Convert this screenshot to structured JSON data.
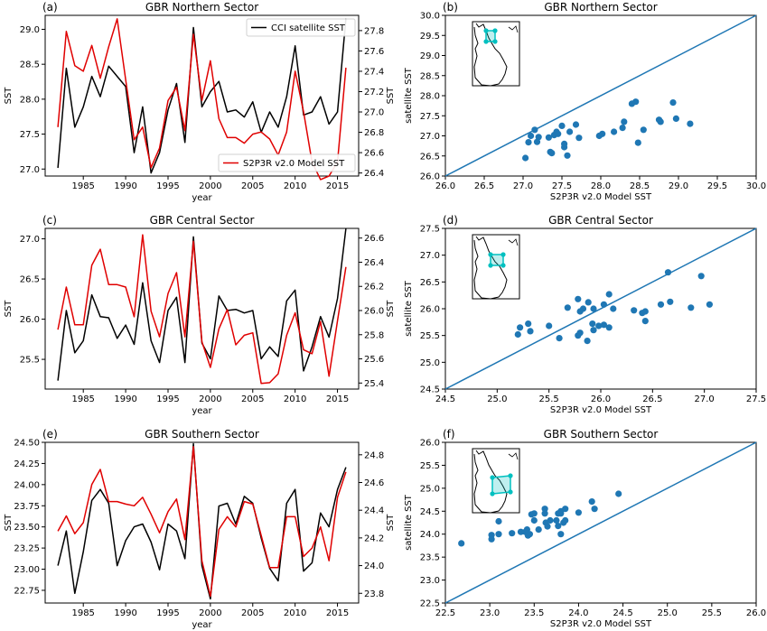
{
  "colors": {
    "satellite": "#000000",
    "model": "#e00000",
    "scatter": "#1f77b4",
    "line11": "#1f77b4",
    "inset_cyan": "#00c0c0",
    "axis": "#000000"
  },
  "legend": {
    "satellite": "CCI satellite SST",
    "model": "S2P3R v2.0 Model SST"
  },
  "chart_data": [
    {
      "panel": "(a)",
      "type": "line",
      "title": "GBR Northern Sector",
      "xlabel": "year",
      "ylabel_left": "SST",
      "ylabel_right": "SST",
      "xlim": [
        1980.5,
        2017.5
      ],
      "ylim_left": [
        26.9,
        29.2
      ],
      "ylim_right": [
        26.37,
        27.95
      ],
      "xticks": [
        1985,
        1990,
        1995,
        2000,
        2005,
        2010,
        2015
      ],
      "yticks_left": [
        "27.0",
        "27.5",
        "28.0",
        "28.5",
        "29.0"
      ],
      "yticks_right": [
        "26.4",
        "26.6",
        "26.8",
        "27.0",
        "27.2",
        "27.4",
        "27.6",
        "27.8"
      ],
      "x": [
        1982,
        1983,
        1984,
        1985,
        1986,
        1987,
        1988,
        1989,
        1990,
        1991,
        1992,
        1993,
        1994,
        1995,
        1996,
        1997,
        1998,
        1999,
        2000,
        2001,
        2002,
        2003,
        2004,
        2005,
        2006,
        2007,
        2008,
        2009,
        2010,
        2011,
        2012,
        2013,
        2014,
        2015,
        2016
      ],
      "series": [
        {
          "name": "CCI satellite SST",
          "axis": "right",
          "values": [
            26.45,
            27.43,
            26.85,
            27.05,
            27.35,
            27.15,
            27.45,
            27.35,
            27.25,
            26.6,
            27.05,
            26.4,
            26.6,
            27.02,
            27.28,
            26.7,
            27.83,
            27.05,
            27.2,
            27.3,
            27.0,
            27.02,
            26.95,
            27.1,
            26.8,
            27.0,
            26.85,
            27.15,
            27.65,
            26.97,
            27.0,
            27.15,
            26.88,
            27.0,
            27.92
          ]
        },
        {
          "name": "S2P3R v2.0 Model SST",
          "axis": "left",
          "values": [
            27.6,
            28.97,
            28.48,
            28.4,
            28.77,
            28.3,
            28.75,
            29.15,
            28.28,
            27.42,
            27.6,
            27.02,
            27.3,
            27.98,
            28.17,
            27.55,
            28.93,
            27.98,
            28.55,
            27.72,
            27.45,
            27.45,
            27.37,
            27.5,
            27.53,
            27.43,
            27.2,
            27.53,
            28.4,
            27.82,
            27.1,
            26.85,
            26.9,
            27.1,
            28.45
          ]
        }
      ]
    },
    {
      "panel": "(b)",
      "type": "scatter",
      "title": "GBR Northern Sector",
      "xlabel": "S2P3R v2.0 Model SST",
      "ylabel": "satellite SST",
      "xlim": [
        26.0,
        30.0
      ],
      "ylim": [
        26.0,
        30.0
      ],
      "xticks": [
        "26.0",
        "26.5",
        "27.0",
        "27.5",
        "28.0",
        "28.5",
        "29.0",
        "29.5",
        "30.0"
      ],
      "yticks": [
        "26.0",
        "26.5",
        "27.0",
        "27.5",
        "28.0",
        "28.5",
        "29.0",
        "29.5",
        "30.0"
      ],
      "points": [
        [
          27.03,
          26.45
        ],
        [
          27.07,
          26.84
        ],
        [
          27.1,
          27.0
        ],
        [
          27.15,
          27.15
        ],
        [
          27.18,
          26.85
        ],
        [
          27.2,
          26.97
        ],
        [
          27.33,
          26.96
        ],
        [
          27.35,
          26.6
        ],
        [
          27.37,
          26.57
        ],
        [
          27.4,
          27.02
        ],
        [
          27.43,
          27.1
        ],
        [
          27.45,
          27.05
        ],
        [
          27.5,
          27.25
        ],
        [
          27.53,
          26.8
        ],
        [
          27.53,
          26.72
        ],
        [
          27.57,
          26.51
        ],
        [
          27.6,
          27.1
        ],
        [
          27.68,
          27.28
        ],
        [
          27.72,
          26.95
        ],
        [
          27.98,
          27.0
        ],
        [
          28.02,
          27.05
        ],
        [
          28.17,
          27.1
        ],
        [
          28.28,
          27.2
        ],
        [
          28.3,
          27.35
        ],
        [
          28.4,
          27.8
        ],
        [
          28.45,
          27.85
        ],
        [
          28.48,
          26.83
        ],
        [
          28.55,
          27.15
        ],
        [
          28.75,
          27.4
        ],
        [
          28.77,
          27.35
        ],
        [
          28.93,
          27.83
        ],
        [
          28.97,
          27.43
        ],
        [
          29.15,
          27.3
        ]
      ],
      "inset": "map"
    },
    {
      "panel": "(c)",
      "type": "line",
      "title": "GBR Central Sector",
      "xlabel": "year",
      "ylabel_left": "SST",
      "ylabel_right": "SST",
      "xlim": [
        1980.5,
        2017.5
      ],
      "ylim_left": [
        25.13,
        27.13
      ],
      "ylim_right": [
        25.35,
        26.68
      ],
      "xticks": [
        1985,
        1990,
        1995,
        2000,
        2005,
        2010,
        2015
      ],
      "yticks_left": [
        "25.5",
        "26.0",
        "26.5",
        "27.0"
      ],
      "yticks_right": [
        "25.4",
        "25.6",
        "25.8",
        "26.0",
        "26.2",
        "26.4",
        "26.6"
      ],
      "x": [
        1982,
        1983,
        1984,
        1985,
        1986,
        1987,
        1988,
        1989,
        1990,
        1991,
        1992,
        1993,
        1994,
        1995,
        1996,
        1997,
        1998,
        1999,
        2000,
        2001,
        2002,
        2003,
        2004,
        2005,
        2006,
        2007,
        2008,
        2009,
        2010,
        2011,
        2012,
        2013,
        2014,
        2015,
        2016
      ],
      "series": [
        {
          "name": "CCI satellite SST",
          "axis": "right",
          "values": [
            25.42,
            26.0,
            25.65,
            25.75,
            26.13,
            25.95,
            25.94,
            25.77,
            25.88,
            25.72,
            26.23,
            25.75,
            25.57,
            26.0,
            26.11,
            25.57,
            26.61,
            25.73,
            25.6,
            26.12,
            26.0,
            26.01,
            25.98,
            26.0,
            25.6,
            25.7,
            25.62,
            26.08,
            26.17,
            25.5,
            25.7,
            25.95,
            25.78,
            26.1,
            26.68
          ]
        },
        {
          "name": "S2P3R v2.0 Model SST",
          "axis": "left",
          "values": [
            25.87,
            26.4,
            25.93,
            25.93,
            26.67,
            26.87,
            26.43,
            26.43,
            26.4,
            26.03,
            27.05,
            26.1,
            25.78,
            26.32,
            26.58,
            25.78,
            26.97,
            25.72,
            25.4,
            25.88,
            26.12,
            25.68,
            25.8,
            25.83,
            25.2,
            25.21,
            25.32,
            25.8,
            26.08,
            25.62,
            25.57,
            25.97,
            25.29,
            25.98,
            26.65
          ]
        }
      ]
    },
    {
      "panel": "(d)",
      "type": "scatter",
      "title": "GBR Central Sector",
      "xlabel": "S2P3R v2.0 Model SST",
      "ylabel": "satellite SST",
      "xlim": [
        24.5,
        27.5
      ],
      "ylim": [
        24.5,
        27.5
      ],
      "xticks": [
        "24.5",
        "25.0",
        "25.5",
        "26.0",
        "26.5",
        "27.0",
        "27.5"
      ],
      "yticks": [
        "24.5",
        "25.0",
        "25.5",
        "26.0",
        "26.5",
        "27.0",
        "27.5"
      ],
      "points": [
        [
          25.2,
          25.52
        ],
        [
          25.22,
          25.65
        ],
        [
          25.3,
          25.72
        ],
        [
          25.32,
          25.58
        ],
        [
          25.5,
          25.68
        ],
        [
          25.6,
          25.45
        ],
        [
          25.68,
          26.02
        ],
        [
          25.78,
          26.18
        ],
        [
          25.78,
          25.5
        ],
        [
          25.8,
          25.55
        ],
        [
          25.8,
          25.95
        ],
        [
          25.83,
          26.0
        ],
        [
          25.87,
          25.4
        ],
        [
          25.88,
          26.12
        ],
        [
          25.92,
          25.72
        ],
        [
          25.93,
          26.0
        ],
        [
          25.93,
          25.6
        ],
        [
          25.98,
          25.68
        ],
        [
          26.03,
          26.08
        ],
        [
          26.03,
          25.7
        ],
        [
          26.08,
          26.27
        ],
        [
          26.08,
          25.65
        ],
        [
          26.12,
          26.0
        ],
        [
          26.32,
          25.97
        ],
        [
          26.4,
          25.92
        ],
        [
          26.43,
          25.95
        ],
        [
          26.43,
          25.77
        ],
        [
          26.58,
          26.08
        ],
        [
          26.65,
          26.68
        ],
        [
          26.67,
          26.13
        ],
        [
          26.87,
          26.02
        ],
        [
          26.97,
          26.61
        ],
        [
          27.05,
          26.08
        ]
      ],
      "inset": "map"
    },
    {
      "panel": "(e)",
      "type": "line",
      "title": "GBR Southern Sector",
      "xlabel": "year",
      "ylabel_left": "SST",
      "ylabel_right": "SST",
      "xlim": [
        1980.5,
        2017.5
      ],
      "ylim_left": [
        22.6,
        24.5
      ],
      "ylim_right": [
        23.73,
        24.89
      ],
      "xticks": [
        1985,
        1990,
        1995,
        2000,
        2005,
        2010,
        2015
      ],
      "yticks_left": [
        "22.75",
        "23.00",
        "23.25",
        "23.50",
        "23.75",
        "24.00",
        "24.25",
        "24.50"
      ],
      "yticks_right": [
        "23.8",
        "24.0",
        "24.2",
        "24.4",
        "24.6",
        "24.8"
      ],
      "x": [
        1982,
        1983,
        1984,
        1985,
        1986,
        1987,
        1988,
        1989,
        1990,
        1991,
        1992,
        1993,
        1994,
        1995,
        1996,
        1997,
        1998,
        1999,
        2000,
        2001,
        2002,
        2003,
        2004,
        2005,
        2006,
        2007,
        2008,
        2009,
        2010,
        2011,
        2012,
        2013,
        2014,
        2015,
        2016
      ],
      "series": [
        {
          "name": "CCI satellite SST",
          "axis": "right",
          "values": [
            24.0,
            24.25,
            23.8,
            24.1,
            24.47,
            24.55,
            24.45,
            24.0,
            24.18,
            24.28,
            24.3,
            24.17,
            23.97,
            24.3,
            24.25,
            24.05,
            24.88,
            24.0,
            23.76,
            24.43,
            24.45,
            24.3,
            24.5,
            24.45,
            24.2,
            23.98,
            23.89,
            24.45,
            24.55,
            23.96,
            24.02,
            24.38,
            24.28,
            24.55,
            24.71
          ]
        },
        {
          "name": "S2P3R v2.0 Model SST",
          "axis": "left",
          "values": [
            23.45,
            23.63,
            23.42,
            23.55,
            24.0,
            24.18,
            23.8,
            23.8,
            23.77,
            23.75,
            23.85,
            23.65,
            23.43,
            23.68,
            23.83,
            23.35,
            24.45,
            23.1,
            22.68,
            23.47,
            23.62,
            23.5,
            23.8,
            23.77,
            23.4,
            23.02,
            23.02,
            23.62,
            23.62,
            23.15,
            23.25,
            23.5,
            23.1,
            23.85,
            24.15
          ]
        }
      ]
    },
    {
      "panel": "(f)",
      "type": "scatter",
      "title": "GBR Southern Sector",
      "xlabel": "S2P3R v2.0 Model SST",
      "ylabel": "satellite SST",
      "xlim": [
        22.5,
        26.0
      ],
      "ylim": [
        22.5,
        26.0
      ],
      "xticks": [
        "22.5",
        "23.0",
        "23.5",
        "24.0",
        "24.5",
        "25.0",
        "25.5",
        "26.0"
      ],
      "yticks": [
        "22.5",
        "23.0",
        "23.5",
        "24.0",
        "24.5",
        "25.0",
        "25.5",
        "26.0"
      ],
      "points": [
        [
          22.68,
          23.8
        ],
        [
          23.02,
          23.98
        ],
        [
          23.02,
          23.89
        ],
        [
          23.1,
          24.28
        ],
        [
          23.1,
          24.0
        ],
        [
          23.25,
          24.02
        ],
        [
          23.35,
          24.05
        ],
        [
          23.4,
          24.05
        ],
        [
          23.42,
          24.1
        ],
        [
          23.43,
          23.97
        ],
        [
          23.45,
          24.0
        ],
        [
          23.47,
          24.43
        ],
        [
          23.5,
          24.3
        ],
        [
          23.5,
          24.45
        ],
        [
          23.55,
          24.1
        ],
        [
          23.62,
          24.45
        ],
        [
          23.62,
          24.55
        ],
        [
          23.63,
          24.25
        ],
        [
          23.65,
          24.17
        ],
        [
          23.68,
          24.3
        ],
        [
          23.75,
          24.3
        ],
        [
          23.77,
          24.18
        ],
        [
          23.77,
          24.45
        ],
        [
          23.8,
          24.45
        ],
        [
          23.8,
          24.5
        ],
        [
          23.8,
          24.0
        ],
        [
          23.83,
          24.25
        ],
        [
          23.85,
          24.55
        ],
        [
          23.85,
          24.3
        ],
        [
          24.0,
          24.47
        ],
        [
          24.15,
          24.71
        ],
        [
          24.18,
          24.55
        ],
        [
          24.45,
          24.88
        ]
      ],
      "inset": "map"
    }
  ]
}
